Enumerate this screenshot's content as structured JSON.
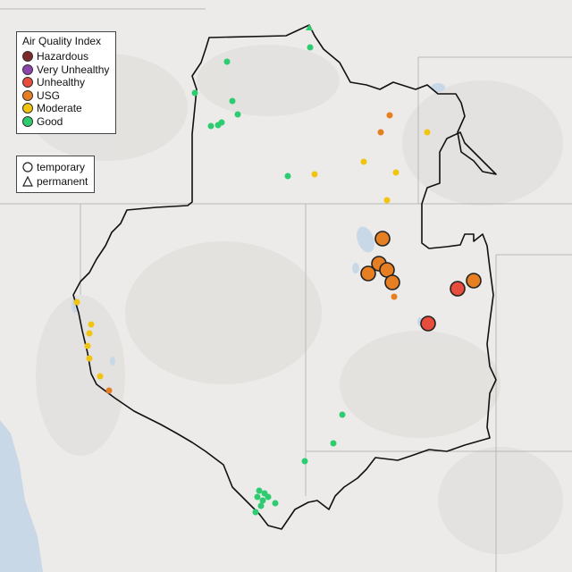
{
  "legend": {
    "title": "Air Quality Index",
    "categories": [
      {
        "label": "Hazardous",
        "color": "#7e2a2a"
      },
      {
        "label": "Very Unhealthy",
        "color": "#8e44ad"
      },
      {
        "label": "Unhealthy",
        "color": "#e74c3c"
      },
      {
        "label": "USG",
        "color": "#e67e22"
      },
      {
        "label": "Moderate",
        "color": "#f1c40f"
      },
      {
        "label": "Good",
        "color": "#2ecc71"
      }
    ]
  },
  "monitor_types": {
    "temporary": "temporary",
    "permanent": "permanent"
  },
  "colors": {
    "land": "#ecebe9",
    "water": "#c8d8e6",
    "boundary": "#111111",
    "state_lines": "#b8b8b8"
  }
}
